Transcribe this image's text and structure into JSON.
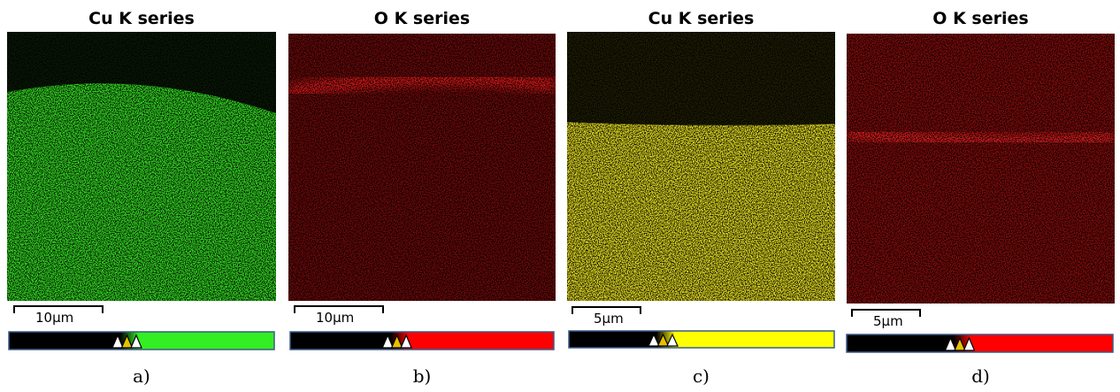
{
  "panels": [
    {
      "title": "Cu K series",
      "scale_bar": "10µm",
      "caption": "a)"
    },
    {
      "title": "O K series",
      "scale_bar": "10µm",
      "caption": "b)"
    },
    {
      "title": "Cu K series",
      "scale_bar": "5µm",
      "caption": "c)"
    },
    {
      "title": "O K series",
      "scale_bar": "5µm",
      "caption": "d)"
    }
  ]
}
